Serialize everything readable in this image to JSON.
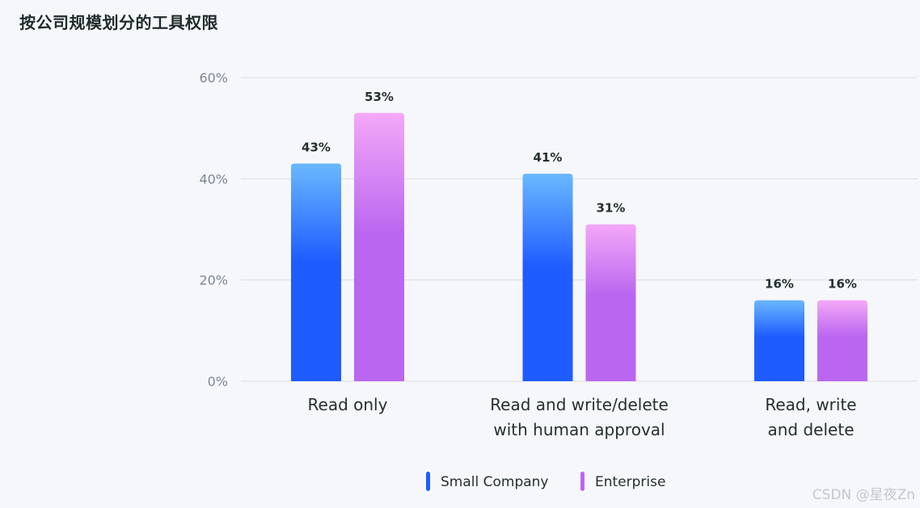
{
  "title": "按公司规模划分的工具权限",
  "watermark": "CSDN @星夜Zn",
  "chart_data": {
    "type": "bar",
    "title": "按公司规模划分的工具权限",
    "categories": [
      [
        "Read only"
      ],
      [
        "Read and write/delete",
        "with human approval"
      ],
      [
        "Read, write",
        "and delete"
      ]
    ],
    "series": [
      {
        "name": "Small Company",
        "values": [
          43,
          41,
          16
        ],
        "color": "#1f5cff",
        "color_top": "#6ab8ff"
      },
      {
        "name": "Enterprise",
        "values": [
          53,
          31,
          16
        ],
        "color": "#bb66f0",
        "color_top": "#f4a8f8"
      }
    ],
    "value_suffix": "%",
    "yticks": [
      "0%",
      "20%",
      "40%",
      "60%"
    ],
    "ylim": [
      0,
      60
    ],
    "grid": true,
    "legend": "bottom-center"
  }
}
